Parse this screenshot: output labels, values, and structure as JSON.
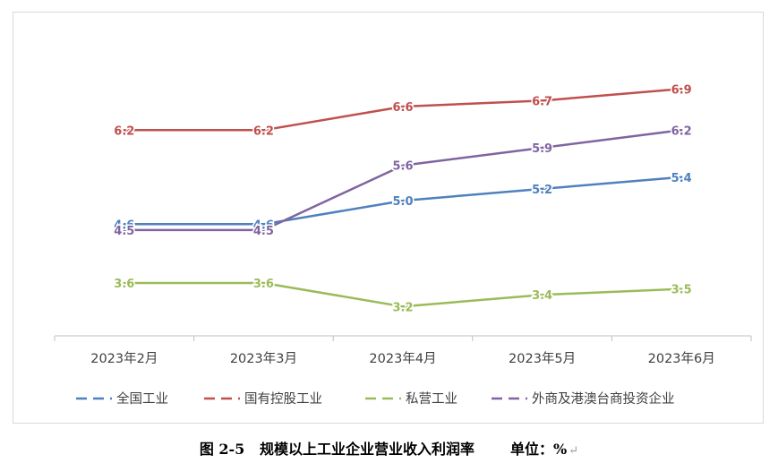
{
  "chart_data": {
    "type": "line",
    "categories": [
      "2023年2月",
      "2023年3月",
      "2023年4月",
      "2023年5月",
      "2023年6月"
    ],
    "series": [
      {
        "name": "全国工业",
        "color": "#4f81bd",
        "values": [
          4.6,
          4.6,
          5.0,
          5.2,
          5.4
        ]
      },
      {
        "name": "国有控股工业",
        "color": "#c0504d",
        "values": [
          6.2,
          6.2,
          6.6,
          6.7,
          6.9
        ]
      },
      {
        "name": "私营工业",
        "color": "#9bbb59",
        "values": [
          3.6,
          3.6,
          3.2,
          3.4,
          3.5
        ]
      },
      {
        "name": "外商及港澳台商投资企业",
        "color": "#8064a2",
        "values": [
          4.5,
          4.5,
          5.6,
          5.9,
          6.2
        ]
      }
    ],
    "label_texts": [
      [
        "4.6",
        "4.6",
        "5.0",
        "5.2",
        "5.4"
      ],
      [
        "6.2",
        "6.2",
        "6.6",
        "6.7",
        "6.9"
      ],
      [
        "3.6",
        "3.6",
        "3.2",
        "3.4",
        "3.5"
      ],
      [
        "4.5",
        "4.5",
        "5.6",
        "5.9",
        "6.2"
      ]
    ],
    "ylim": [
      2.9,
      7.3
    ],
    "grid": false,
    "legend_position": "bottom"
  },
  "caption": {
    "title": "图 2-5   规模以上工业企业营业收入利润率",
    "unit": "单位：%",
    "return_mark": "↵"
  }
}
